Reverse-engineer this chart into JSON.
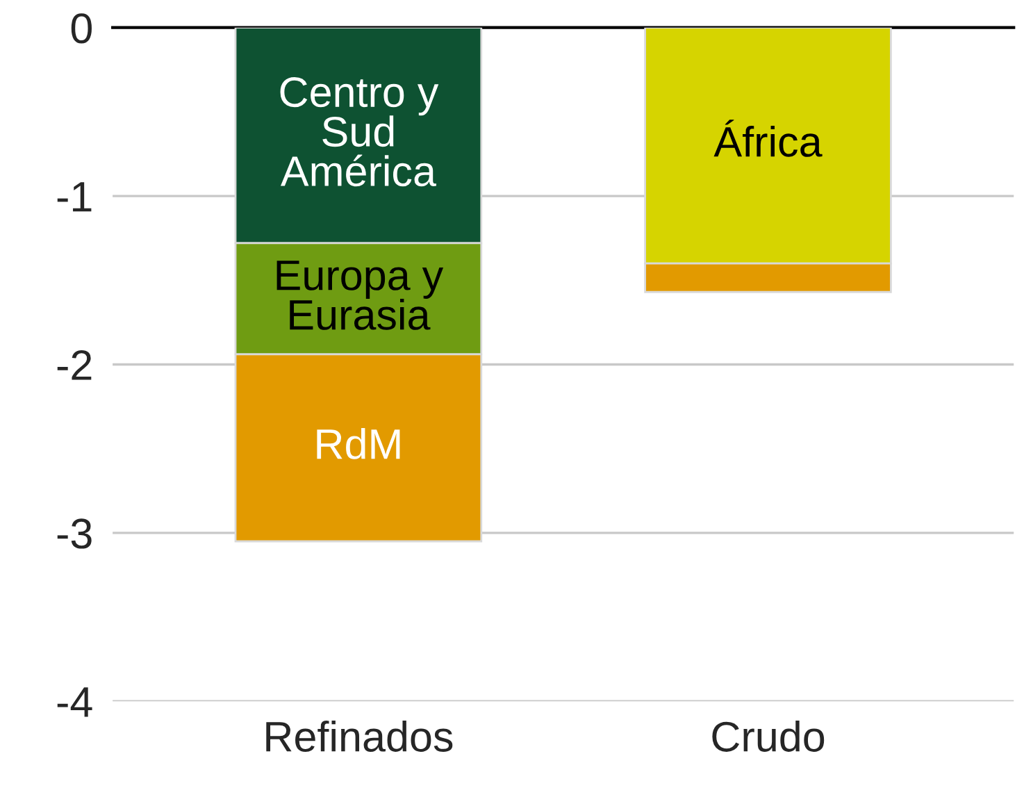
{
  "chart_data": {
    "type": "bar",
    "stacked": true,
    "categories": [
      "Refinados",
      "Crudo"
    ],
    "series": [
      {
        "name": "Centro y\nSud\nAmérica",
        "color": "#0e5232",
        "values": [
          -1.28,
          null
        ]
      },
      {
        "name": "Europa y\nEurasia",
        "color": "#6f9c12",
        "values": [
          -0.66,
          null
        ]
      },
      {
        "name": "África",
        "color": "#d6d400",
        "values": [
          null,
          -1.4
        ]
      },
      {
        "name": "RdM",
        "color": "#e29a00",
        "values": [
          -1.11,
          -0.17
        ]
      }
    ],
    "ylim": [
      -4,
      0
    ],
    "yticks": [
      -4,
      -3,
      -2,
      -1,
      0
    ],
    "grid": "y",
    "legend": false
  }
}
